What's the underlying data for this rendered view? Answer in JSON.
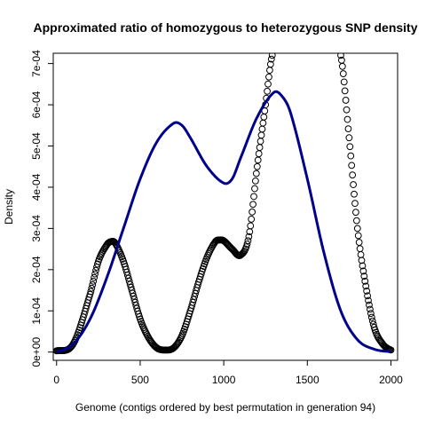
{
  "chart_data": {
    "type": "scatter",
    "title": "Approximated ratio of homozygous to heterozygous SNP density",
    "xlabel": "Genome (contigs ordered by best permutation in generation 94)",
    "ylabel": "Density",
    "xlim": [
      -20,
      2040
    ],
    "ylim": [
      -2e-05,
      0.000725
    ],
    "x_ticks": [
      0,
      500,
      1000,
      1500,
      2000
    ],
    "x_tick_labels": [
      "0",
      "500",
      "1000",
      "1500",
      "2000"
    ],
    "y_ticks": [
      0,
      0.0001,
      0.0002,
      0.0003,
      0.0004,
      0.0005,
      0.0006,
      0.0007
    ],
    "y_tick_labels": [
      "0e+00",
      "1e-04",
      "2e-04",
      "3e-04",
      "4e-04",
      "5e-04",
      "6e-04",
      "7e-04"
    ],
    "grid": false,
    "legend": "none",
    "series": [
      {
        "kind": "points",
        "marker": "open-circle",
        "color": "#000000",
        "x": [
          0,
          100,
          200,
          250,
          300,
          325,
          350,
          400,
          450,
          500,
          550,
          600,
          650,
          700,
          750,
          800,
          850,
          900,
          950,
          975,
          1000,
          1050,
          1100,
          1150,
          1200,
          1250,
          1290,
          1700,
          1750,
          1800,
          1850,
          1900,
          1950,
          2000
        ],
        "y": [
          3e-06,
          2e-05,
          0.00014,
          0.00022,
          0.00026,
          0.000268,
          0.000265,
          0.00022,
          0.00015,
          8e-05,
          3.5e-05,
          1e-05,
          5e-06,
          1e-05,
          4e-05,
          0.0001,
          0.00017,
          0.00023,
          0.000268,
          0.000272,
          0.00027,
          0.00025,
          0.000235,
          0.00028,
          0.00045,
          0.0006,
          0.00072,
          0.00072,
          0.00052,
          0.0003,
          0.00016,
          6e-05,
          2e-05,
          5e-06
        ]
      },
      {
        "kind": "line",
        "color": "#00008B",
        "x": [
          0,
          100,
          200,
          300,
          400,
          500,
          600,
          700,
          750,
          800,
          900,
          1000,
          1050,
          1100,
          1200,
          1300,
          1350,
          1400,
          1500,
          1600,
          1700,
          1800,
          1900,
          2000
        ],
        "y": [
          1e-06,
          2e-05,
          8e-05,
          0.00018,
          0.0003,
          0.00042,
          0.00051,
          0.000555,
          0.00055,
          0.00052,
          0.00045,
          0.00041,
          0.00042,
          0.00047,
          0.00057,
          0.00063,
          0.00062,
          0.00058,
          0.00042,
          0.00024,
          0.0001,
          3e-05,
          7e-06,
          1e-06
        ]
      }
    ]
  }
}
